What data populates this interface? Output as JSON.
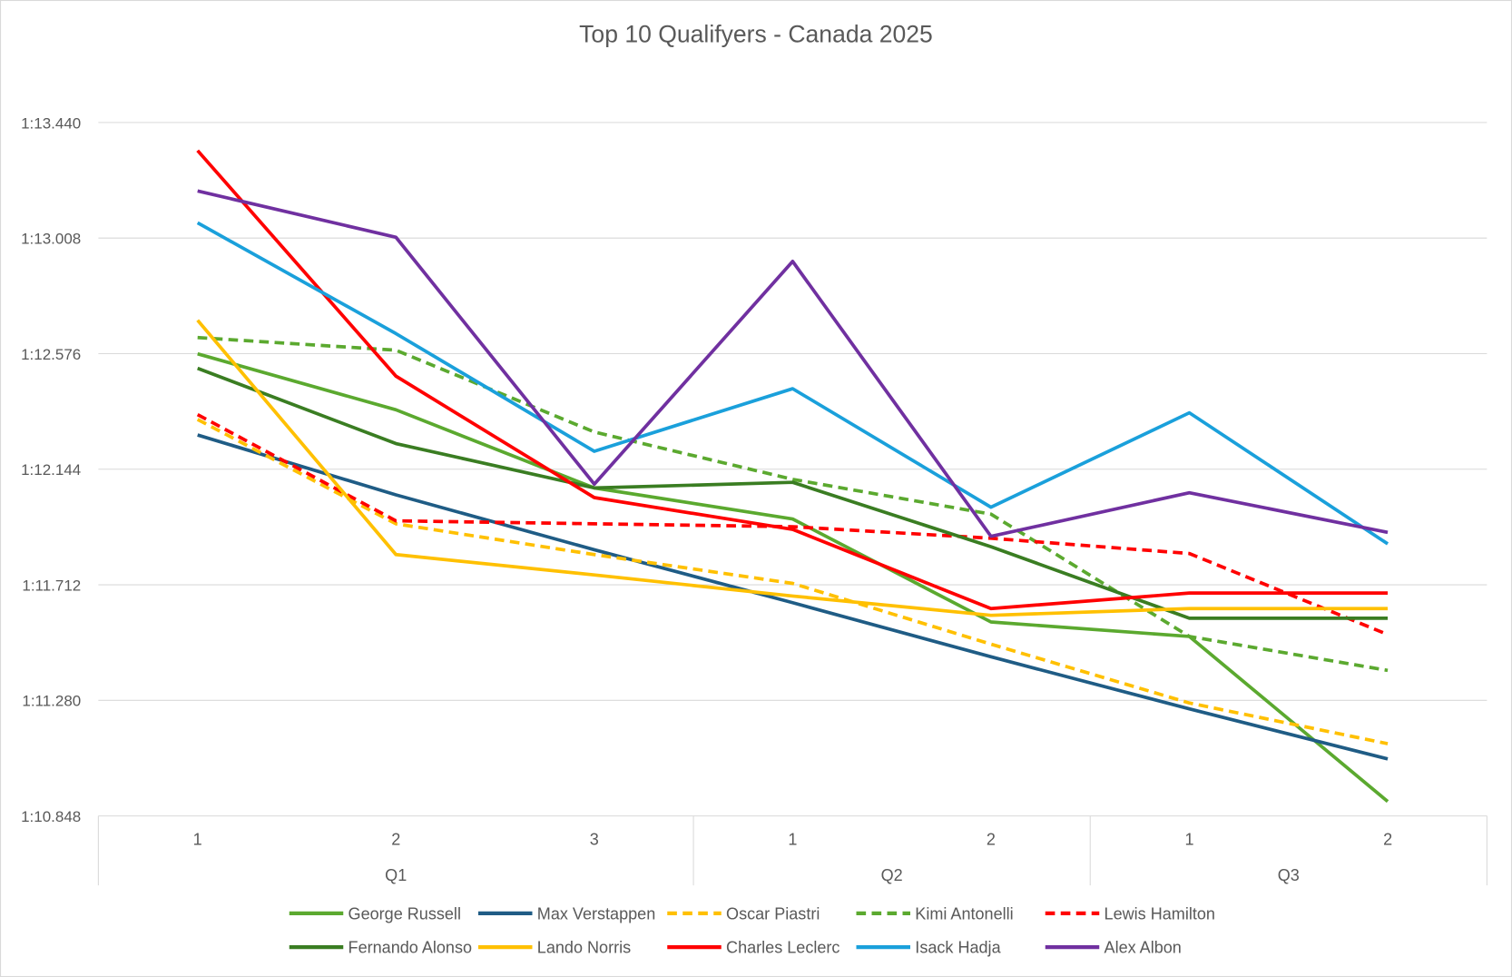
{
  "chart_data": {
    "type": "line",
    "title": "Top 10 Qualifyers - Canada 2025",
    "xlabel": "",
    "ylabel": "",
    "ylim_seconds": [
      70.848,
      73.44
    ],
    "y_ticks": [
      {
        "label": "1:13.440",
        "value": 73.44
      },
      {
        "label": "1:13.008",
        "value": 73.008
      },
      {
        "label": "1:12.576",
        "value": 72.576
      },
      {
        "label": "1:12.144",
        "value": 72.144
      },
      {
        "label": "1:11.712",
        "value": 71.712
      },
      {
        "label": "1:11.280",
        "value": 71.28
      },
      {
        "label": "1:10.848",
        "value": 70.848
      }
    ],
    "grid": true,
    "legend_position": "bottom",
    "categories": [
      "1",
      "2",
      "3",
      "1",
      "2",
      "1",
      "2"
    ],
    "groups": [
      {
        "label": "Q1",
        "count": 3
      },
      {
        "label": "Q2",
        "count": 2
      },
      {
        "label": "Q3",
        "count": 2
      }
    ],
    "series": [
      {
        "name": "George Russell",
        "color": "#5BA92F",
        "dashed": false,
        "values": [
          72.575,
          72.366,
          72.074,
          71.958,
          71.573,
          71.519,
          70.902
        ]
      },
      {
        "name": "Max Verstappen",
        "color": "#1F5C85",
        "dashed": false,
        "values": [
          72.272,
          72.048,
          71.843,
          71.645,
          71.443,
          71.248,
          71.061
        ]
      },
      {
        "name": "Oscar Piastri",
        "color": "#FFC000",
        "dashed": true,
        "values": [
          72.33,
          71.94,
          71.825,
          71.717,
          71.49,
          71.27,
          71.118
        ]
      },
      {
        "name": "Kimi Antonelli",
        "color": "#5BA92F",
        "dashed": true,
        "values": [
          72.636,
          72.589,
          72.283,
          72.106,
          71.976,
          71.519,
          71.392
        ]
      },
      {
        "name": "Lewis Hamilton",
        "color": "#FF0000",
        "dashed": true,
        "values": [
          72.348,
          71.951,
          71.94,
          71.929,
          71.886,
          71.829,
          71.526
        ]
      },
      {
        "name": "Fernando Alonso",
        "color": "#3A7D22",
        "dashed": false,
        "values": [
          72.521,
          72.24,
          72.074,
          72.095,
          71.854,
          71.587,
          71.587
        ]
      },
      {
        "name": "Lando Norris",
        "color": "#FFC000",
        "dashed": false,
        "values": [
          72.701,
          71.825,
          71.749,
          71.67,
          71.598,
          71.623,
          71.623
        ]
      },
      {
        "name": "Charles Leclerc",
        "color": "#FF0000",
        "dashed": false,
        "values": [
          73.335,
          72.492,
          72.038,
          71.919,
          71.623,
          71.681,
          71.681
        ]
      },
      {
        "name": "Isack Hadja",
        "color": "#1AA0DB",
        "dashed": false,
        "values": [
          73.065,
          72.651,
          72.211,
          72.445,
          72.002,
          72.355,
          71.865
        ]
      },
      {
        "name": "Alex Albon",
        "color": "#7030A0",
        "dashed": false,
        "values": [
          73.184,
          73.011,
          72.088,
          72.921,
          71.893,
          72.056,
          71.908
        ]
      }
    ]
  }
}
